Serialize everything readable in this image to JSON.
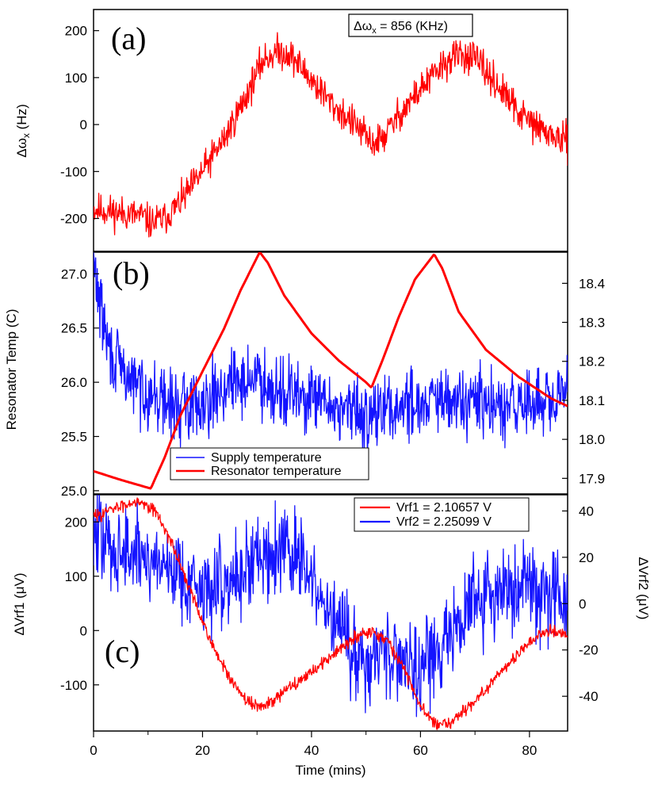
{
  "chart_data": [
    {
      "type": "line",
      "panel_label": "(a)",
      "ylabel": "Δωx (Hz)",
      "ylabel_base": "Δω",
      "ylabel_sub": "x",
      "ylabel_unit": " (Hz)",
      "xlim": [
        0,
        87
      ],
      "ylim": [
        -270,
        245
      ],
      "yticks": [
        -200,
        -100,
        0,
        100,
        200
      ],
      "yticklabels": [
        "-200",
        "-100",
        "0",
        "100",
        "200"
      ],
      "annotation": "Δωx = 856 (KHz)",
      "annotation_base": "Δω",
      "annotation_sub": "x",
      "annotation_rest": " = 856 (KHz)",
      "series": [
        {
          "name": "Δωx",
          "color": "#ff0000",
          "noise": 22,
          "seed": 11,
          "x": [
            0,
            3,
            6,
            9,
            10.5,
            13,
            16,
            20,
            24,
            28,
            31,
            33.5,
            36,
            40,
            44,
            48,
            51,
            53,
            56,
            60,
            64,
            67,
            70,
            74,
            78,
            82,
            87
          ],
          "y": [
            -180,
            -185,
            -190,
            -195,
            -210,
            -200,
            -165,
            -100,
            -30,
            60,
            135,
            155,
            150,
            95,
            40,
            0,
            -40,
            -30,
            20,
            75,
            125,
            150,
            140,
            85,
            25,
            -10,
            -40
          ]
        }
      ]
    },
    {
      "type": "line",
      "panel_label": "(b)",
      "ylabel": "Resonator Temp (C)",
      "xlim": [
        0,
        87
      ],
      "ylim": [
        24.97,
        27.2
      ],
      "yticks": [
        25.0,
        25.5,
        26.0,
        26.5,
        27.0
      ],
      "yticklabels": [
        "25.0",
        "25.5",
        "26.0",
        "26.5",
        "27.0"
      ],
      "y2lim": [
        17.86,
        18.48
      ],
      "y2ticks": [
        17.9,
        18.0,
        18.1,
        18.2,
        18.3,
        18.4
      ],
      "y2ticklabels": [
        "17.9",
        "18.0",
        "18.1",
        "18.2",
        "18.3",
        "18.4"
      ],
      "legend": {
        "position": "bottom-center",
        "entries": [
          "Supply temperature",
          "Resonator temperature"
        ]
      },
      "series": [
        {
          "name": "Supply temperature",
          "axis": "right",
          "color": "#1414ff",
          "noise": 0.055,
          "seed": 29,
          "x": [
            0,
            1.5,
            3,
            6,
            10,
            15,
            20,
            25,
            30,
            35,
            40,
            45,
            50,
            55,
            60,
            65,
            70,
            75,
            80,
            85,
            87
          ],
          "y": [
            18.45,
            18.32,
            18.22,
            18.16,
            18.12,
            18.08,
            18.1,
            18.14,
            18.16,
            18.12,
            18.1,
            18.08,
            18.06,
            18.08,
            18.1,
            18.09,
            18.1,
            18.07,
            18.1,
            18.08,
            18.15
          ]
        },
        {
          "name": "Resonator temperature",
          "axis": "left",
          "color": "#ff0000",
          "noise": 0,
          "seed": 0,
          "x": [
            0,
            5,
            10.5,
            13,
            16,
            20,
            24,
            27,
            30.5,
            32,
            35,
            40,
            45,
            50,
            51,
            53,
            56,
            59,
            62.5,
            64,
            67,
            72,
            78,
            84,
            87
          ],
          "y": [
            25.18,
            25.1,
            25.02,
            25.3,
            25.7,
            26.1,
            26.5,
            26.85,
            27.2,
            27.1,
            26.8,
            26.45,
            26.2,
            26.0,
            25.95,
            26.2,
            26.6,
            26.95,
            27.18,
            27.05,
            26.65,
            26.3,
            26.05,
            25.85,
            25.78
          ]
        }
      ]
    },
    {
      "type": "line",
      "panel_label": "(c)",
      "ylabel": "ΔVrf1 (μV)",
      "y2label": "ΔVrf2 (μV)",
      "xlabel": "Time (mins)",
      "xlim": [
        0,
        87
      ],
      "xticks": [
        0,
        20,
        40,
        60,
        80
      ],
      "xticklabels": [
        "0",
        "20",
        "40",
        "60",
        "80"
      ],
      "ylim": [
        -185,
        250
      ],
      "yticks": [
        -100,
        0,
        100,
        200
      ],
      "yticklabels": [
        "-100",
        "0",
        "100",
        "200"
      ],
      "y2lim": [
        -55,
        47
      ],
      "y2ticks": [
        -40,
        -20,
        0,
        20,
        40
      ],
      "y2ticklabels": [
        "-40",
        "-20",
        "0",
        "20",
        "40"
      ],
      "legend": {
        "position": "top-right",
        "entries": [
          "Vrf1 = 2.10657 V",
          "Vrf2 = 2.25099 V"
        ]
      },
      "series": [
        {
          "name": "Vrf2 = 2.25099 V",
          "axis": "right",
          "color": "#1414ff",
          "noise": 12,
          "seed": 47,
          "x": [
            0,
            3,
            6,
            10,
            15,
            20,
            25,
            30,
            35,
            38,
            42,
            46,
            50,
            54,
            58,
            62,
            66,
            70,
            75,
            80,
            84,
            87
          ],
          "y": [
            30,
            25,
            22,
            20,
            15,
            5,
            10,
            20,
            25,
            18,
            0,
            -15,
            -25,
            -20,
            -25,
            -25,
            -10,
            0,
            5,
            8,
            5,
            3
          ]
        },
        {
          "name": "Vrf1 = 2.10657 V",
          "axis": "left",
          "color": "#ff0000",
          "noise": 7,
          "seed": 83,
          "x": [
            0,
            4,
            8,
            11,
            13,
            16,
            19,
            22,
            25,
            28,
            30.5,
            33,
            36,
            40,
            44,
            48,
            51,
            54,
            57,
            60,
            63,
            66,
            70,
            74,
            78,
            82,
            85,
            87
          ],
          "y": [
            210,
            225,
            240,
            225,
            190,
            120,
            40,
            -30,
            -90,
            -130,
            -140,
            -130,
            -105,
            -75,
            -45,
            -10,
            0,
            -20,
            -70,
            -140,
            -175,
            -165,
            -130,
            -85,
            -40,
            -5,
            0,
            -10
          ]
        }
      ]
    }
  ]
}
